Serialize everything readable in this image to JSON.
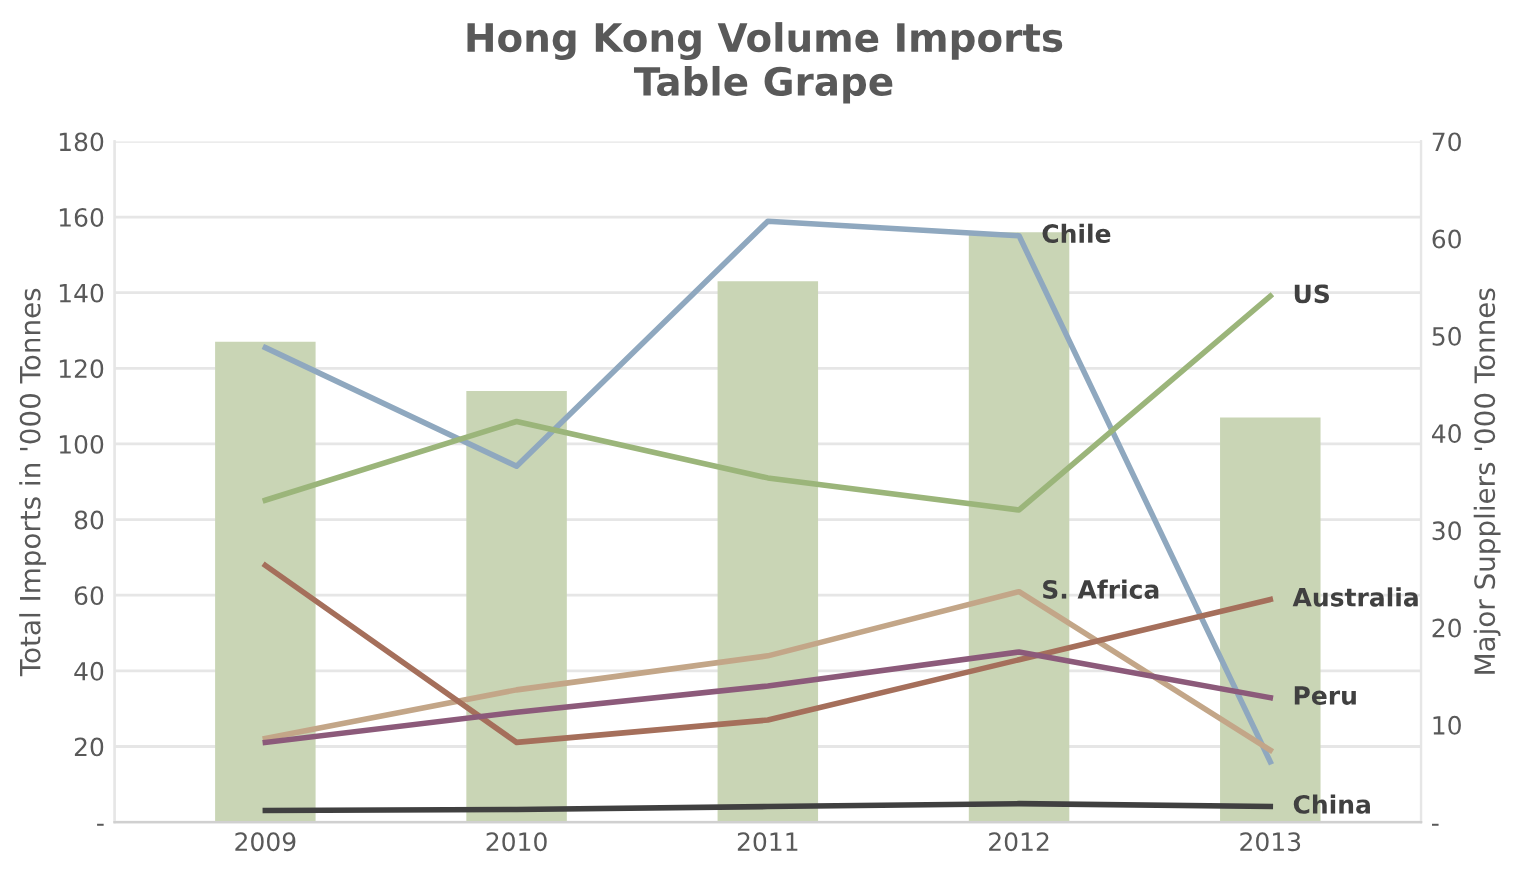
{
  "chart_data": {
    "type": "bar",
    "title": "Hong Kong Volume Imports\nTable Grape",
    "ylabel": "Total Imports in '000 Tonnes",
    "y2label": "Major Suppliers '000 Tonnes",
    "categories": [
      "2009",
      "2010",
      "2011",
      "2012",
      "2013"
    ],
    "ylim": [
      0,
      180
    ],
    "yticks": [
      {
        "value": 0,
        "label": "-"
      },
      20,
      40,
      60,
      80,
      100,
      120,
      140,
      160,
      180
    ],
    "y2lim": [
      0,
      70
    ],
    "y2ticks": [
      {
        "value": 0,
        "label": "-"
      },
      10,
      20,
      30,
      40,
      50,
      60,
      70
    ],
    "grid": "y",
    "legend": false,
    "series": [
      {
        "color": "#c9d5b5",
        "values": [
          127,
          114,
          143,
          156,
          107
        ]
      },
      {
        "type": "line",
        "axis": "y2",
        "name": "Chile",
        "color": "#8fa8bf",
        "values": [
          48.8,
          36.6,
          61.8,
          60.3,
          6.2
        ]
      },
      {
        "type": "line",
        "axis": "y2",
        "name": "US",
        "color": "#9bb57a",
        "values": [
          33.1,
          41.2,
          35.4,
          32.1,
          54.1
        ]
      },
      {
        "type": "line",
        "axis": "y2",
        "name": "S. Africa",
        "color": "#c3a688",
        "values": [
          8.6,
          13.6,
          17.1,
          23.7,
          7.4
        ]
      },
      {
        "type": "line",
        "axis": "y2",
        "name": "Australia",
        "color": "#a56f5b",
        "values": [
          26.4,
          8.2,
          10.5,
          16.7,
          22.9
        ]
      },
      {
        "type": "line",
        "axis": "y2",
        "name": "Peru",
        "color": "#8c5a7a",
        "values": [
          8.2,
          11.3,
          14.0,
          17.5,
          12.8
        ]
      },
      {
        "type": "line",
        "axis": "y2",
        "name": "China",
        "color": "#404040",
        "values": [
          1.2,
          1.3,
          1.6,
          1.9,
          1.6
        ]
      }
    ]
  }
}
